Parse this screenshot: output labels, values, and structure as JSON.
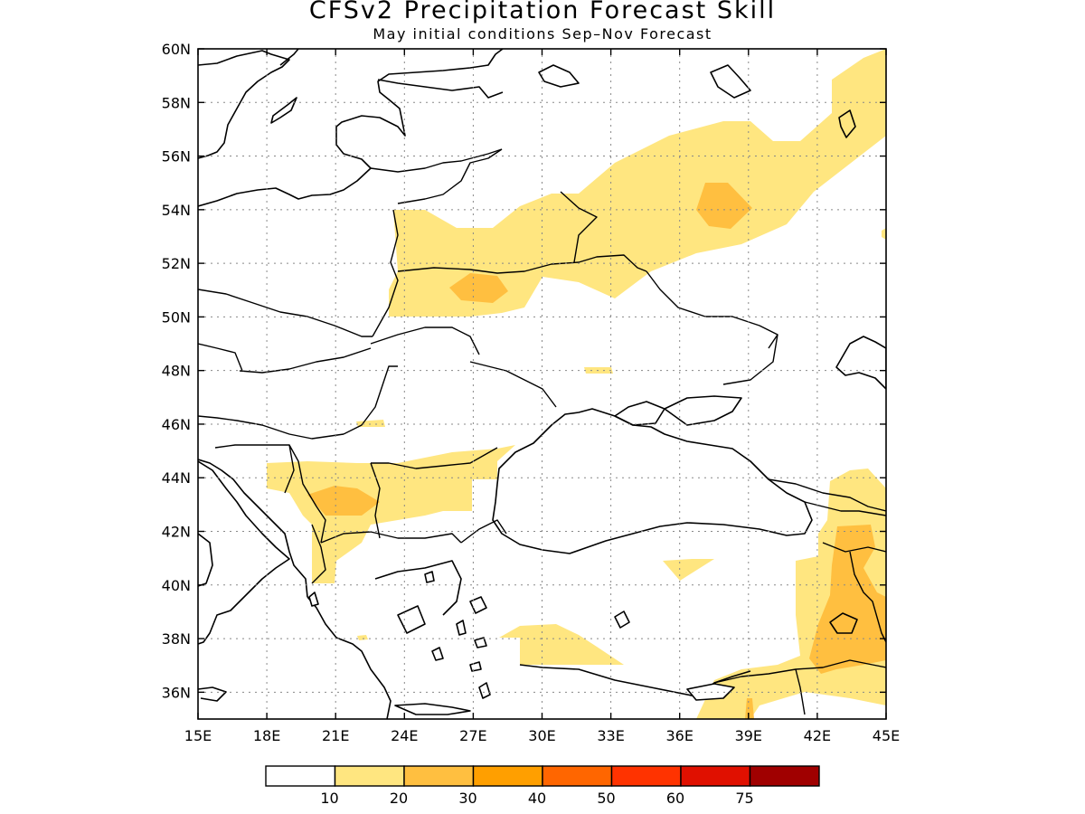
{
  "title": "CFSv2 Precipitation Forecast Skill",
  "subtitle": "May initial conditions   Sep–Nov Forecast",
  "map": {
    "lat_labels": [
      "60N",
      "58N",
      "56N",
      "54N",
      "52N",
      "50N",
      "48N",
      "46N",
      "44N",
      "42N",
      "40N",
      "38N",
      "36N"
    ],
    "lon_labels": [
      "15E",
      "18E",
      "21E",
      "24E",
      "27E",
      "30E",
      "33E",
      "36E",
      "39E",
      "42E",
      "45E"
    ],
    "lat_range": [
      35,
      60
    ],
    "lon_range": [
      15,
      45
    ],
    "grid": "dotted"
  },
  "legend": {
    "colors": [
      "#ffffff",
      "#ffe680",
      "#ffbf40",
      "#ff9f00",
      "#ff6600",
      "#ff3300",
      "#e01000",
      "#a00000"
    ],
    "labels": [
      "10",
      "20",
      "30",
      "40",
      "50",
      "60",
      "75"
    ]
  }
}
